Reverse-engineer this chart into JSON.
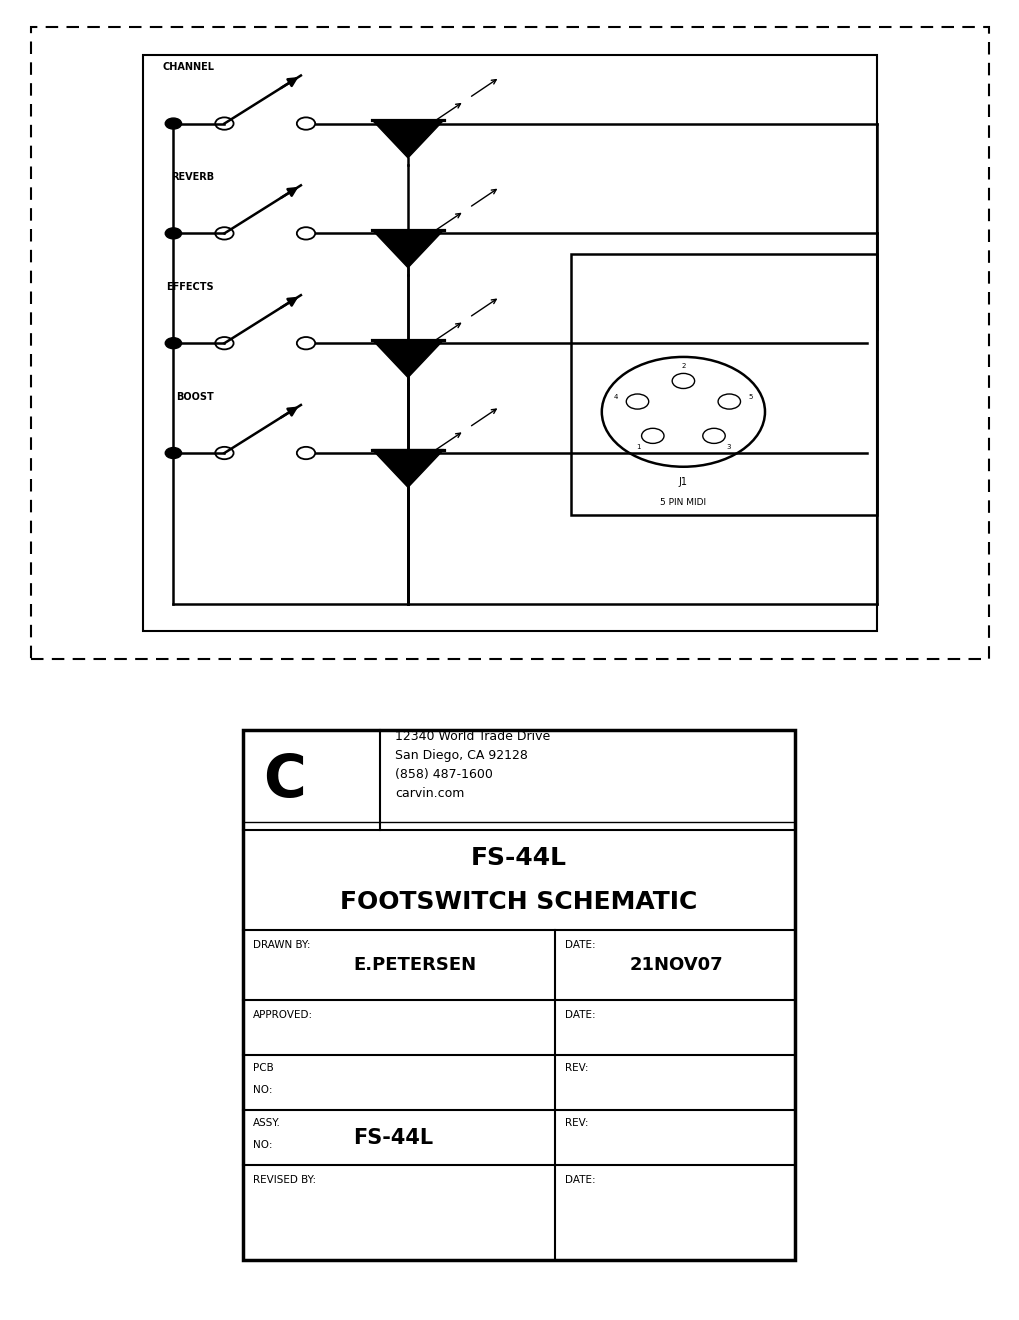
{
  "bg_color": "#ffffff",
  "line_color": "#000000",
  "title_line1": "FS-44L",
  "title_line2": "FOOTSWITCH SCHEMATIC",
  "company_name": "C",
  "company_address_lines": [
    "12340 World Trade Drive",
    "San Diego, CA 92128",
    "(858) 487-1600",
    "carvin.com"
  ],
  "drawn_by_label": "DRAWN BY:",
  "drawn_by_value": "E.PETERSEN",
  "date_label": "DATE:",
  "date_value": "21NOV07",
  "approved_label": "APPROVED:",
  "approved_date_label": "DATE:",
  "pcb_label1": "PCB",
  "pcb_label2": "NO:",
  "rev_label": "REV:",
  "assy_label1": "ASSY.",
  "assy_label2": "NO:",
  "assy_value": "FS-44L",
  "assy_rev_label": "REV:",
  "revised_label": "REVISED BY:",
  "revised_date_label": "DATE:",
  "j1_label": "J1",
  "j1_sublabel": "5 PIN MIDI",
  "switch_labels": [
    "CHANNEL",
    "REVERB",
    "EFFECTS",
    "BOOST"
  ]
}
